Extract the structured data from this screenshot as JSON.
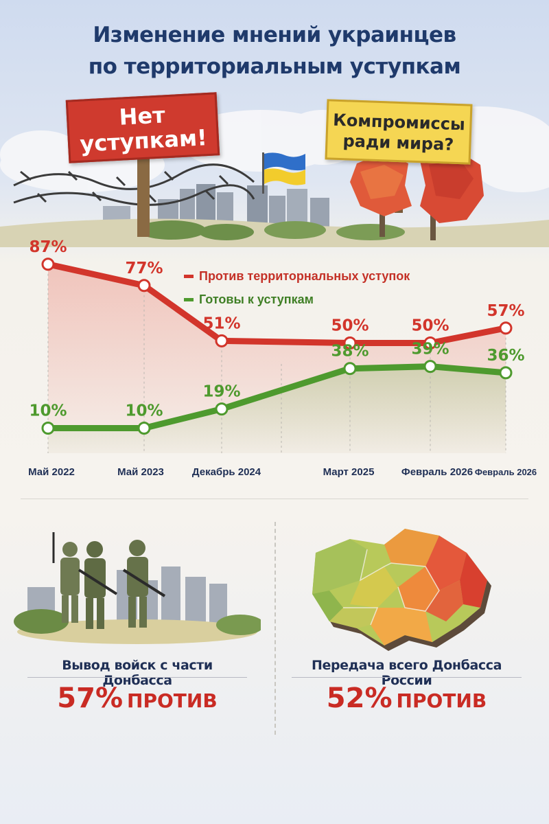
{
  "title": {
    "line1": "Изменение мнений украинцев",
    "line2": "по территориальным уступкам"
  },
  "signs": {
    "red": {
      "line1": "Нет",
      "line2": "уступкам!"
    },
    "yellow": {
      "line1": "Компромиссы",
      "line2": "ради мира?"
    }
  },
  "colors": {
    "against": "#d2352b",
    "ready": "#4e9a2e",
    "title": "#1f3a6b",
    "stat": "#c92b24"
  },
  "chart_data": {
    "type": "line",
    "categories": [
      "Май 2022",
      "Май 2023",
      "Декабрь 2024",
      "Март 2025",
      "Февраль 2026",
      "Февраль 2026"
    ],
    "series": [
      {
        "name": "Против территорнальных уступок",
        "values": [
          87,
          77,
          51,
          50,
          50,
          57
        ],
        "labels": [
          "87%",
          "77%",
          "51%",
          "50%",
          "50%",
          "57%"
        ]
      },
      {
        "name": "Готовы к уступкам",
        "values": [
          10,
          10,
          19,
          38,
          39,
          36
        ],
        "labels": [
          "10%",
          "10%",
          "19%",
          "38%",
          "39%",
          "36%"
        ]
      }
    ],
    "legend": "top-center",
    "grid": false
  },
  "panels": {
    "left": {
      "label": "Вывод войск с части Донбасса",
      "percent": "57%",
      "word": "ПРОТИВ",
      "illustration": "soldiers-illustration"
    },
    "right": {
      "label": "Передача всего Донбасса России",
      "percent": "52%",
      "word": "ПРОТИВ",
      "illustration": "ukraine-map-illustration"
    }
  }
}
